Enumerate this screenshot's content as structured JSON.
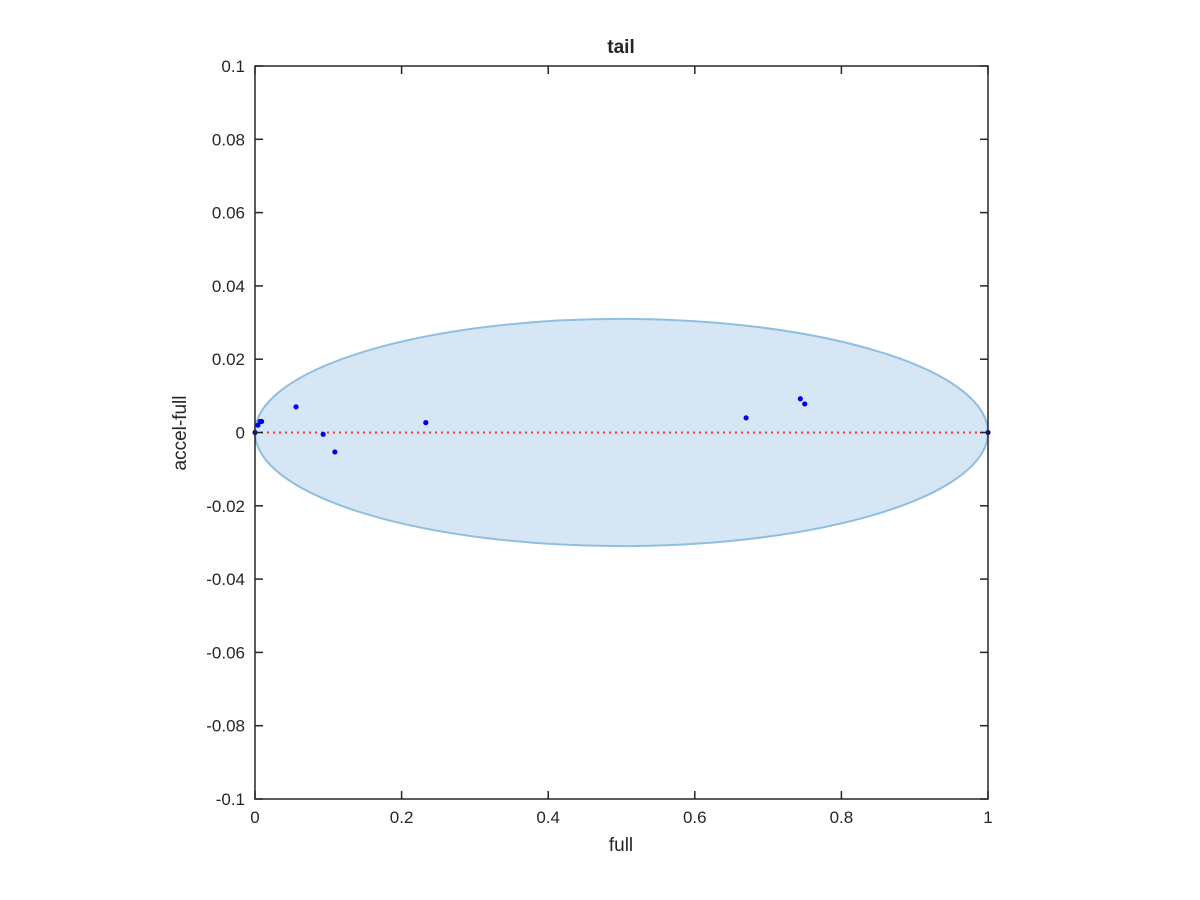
{
  "chart_data": {
    "type": "scatter",
    "title": "tail",
    "xlabel": "full",
    "ylabel": "accel-full",
    "xlim": [
      0,
      1
    ],
    "ylim": [
      -0.1,
      0.1
    ],
    "xticks": [
      0,
      0.2,
      0.4,
      0.6,
      0.8,
      1
    ],
    "xtick_labels": [
      "0",
      "0.2",
      "0.4",
      "0.6",
      "0.8",
      "1"
    ],
    "yticks": [
      -0.1,
      -0.08,
      -0.06,
      -0.04,
      -0.02,
      0,
      0.02,
      0.04,
      0.06,
      0.08,
      0.1
    ],
    "ytick_labels": [
      "-0.1",
      "-0.08",
      "-0.06",
      "-0.04",
      "-0.02",
      "0",
      "0.02",
      "0.04",
      "0.06",
      "0.08",
      "0.1"
    ],
    "grid": false,
    "colors": {
      "points": "#0000ee",
      "ellipse_fill": "#d6e6f4",
      "ellipse_stroke": "#8fbfe0",
      "reference_line": "#ff3333",
      "axes": "#262626"
    },
    "reference_line": {
      "y": 0,
      "style": "dotted"
    },
    "ellipse": {
      "cx": 0.5,
      "cy": 0,
      "rx": 0.5,
      "ry": 0.031
    },
    "points": [
      {
        "x": 0.0,
        "y": 0.0
      },
      {
        "x": 0.004,
        "y": 0.002
      },
      {
        "x": 0.007,
        "y": 0.003
      },
      {
        "x": 0.009,
        "y": 0.003
      },
      {
        "x": 0.056,
        "y": 0.007
      },
      {
        "x": 0.093,
        "y": -0.0005
      },
      {
        "x": 0.109,
        "y": -0.0053
      },
      {
        "x": 0.233,
        "y": 0.0027
      },
      {
        "x": 0.67,
        "y": 0.004
      },
      {
        "x": 0.744,
        "y": 0.0092
      },
      {
        "x": 0.75,
        "y": 0.0078
      },
      {
        "x": 1.0,
        "y": 0.0
      }
    ]
  }
}
